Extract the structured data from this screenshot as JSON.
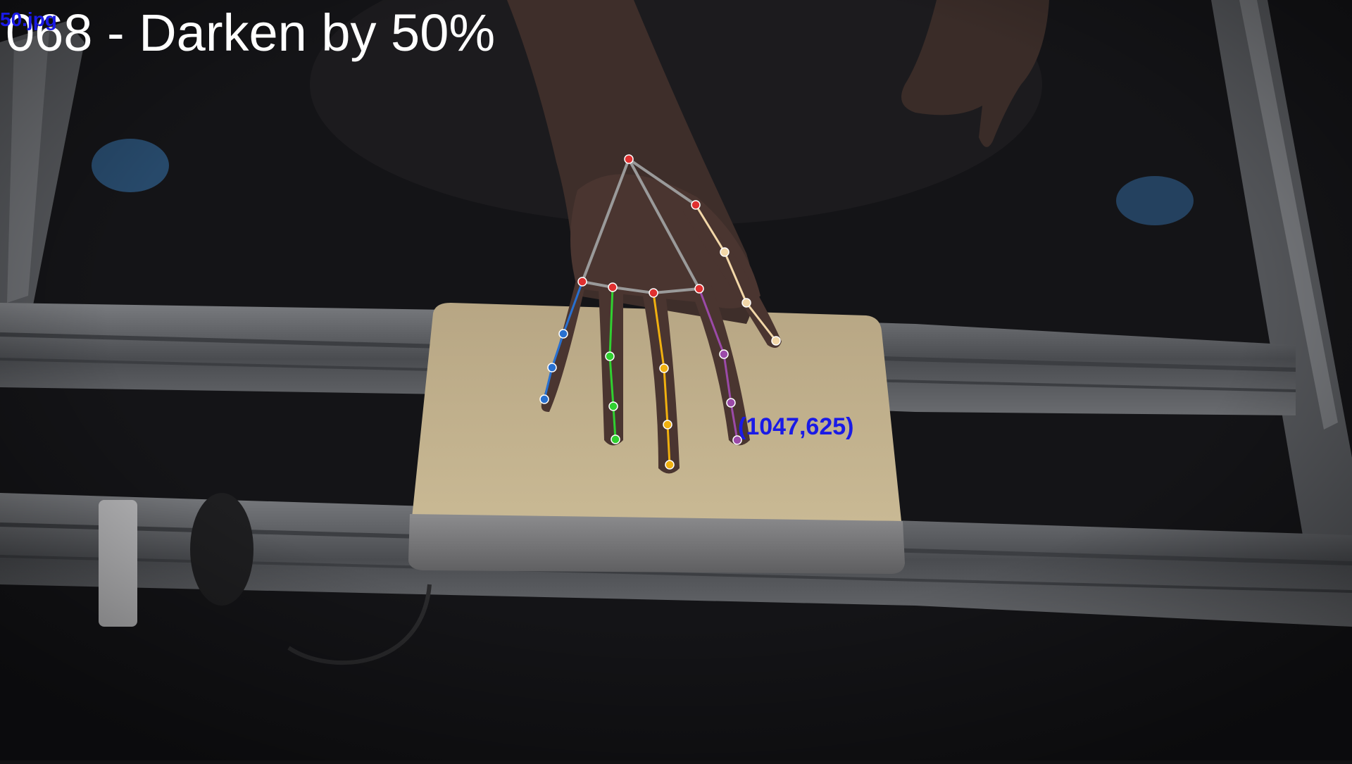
{
  "overlay": {
    "title": "068 - Darken by 50%",
    "filename": "50.jpg",
    "coordinate_label": "(1047,625)"
  },
  "colors": {
    "background": "#121214",
    "rail": "#5c5e62",
    "board": "#c8b896",
    "skin": "#4a3530",
    "palm_lines": "#9a9a9a",
    "joint": "#e03030",
    "thumb": "#f2d7a8",
    "index": "#9b4aa8",
    "middle": "#f0b010",
    "ring": "#30d030",
    "pinky": "#2870d0",
    "label": "#1a1ae6"
  }
}
